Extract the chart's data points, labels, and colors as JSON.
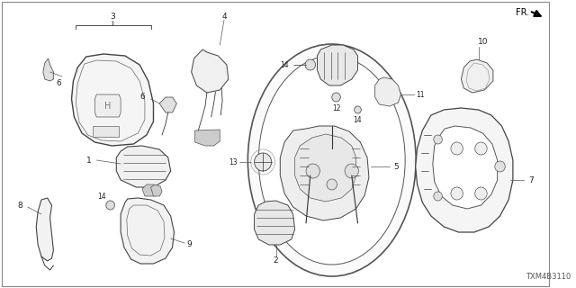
{
  "background": "#ffffff",
  "border_color": "#888888",
  "text_color": "#222222",
  "line_color": "#333333",
  "diagram_code": "TXM4B3110",
  "fs_label": 6.5,
  "fs_small": 5.5,
  "figsize": [
    6.4,
    3.2
  ],
  "dpi": 100
}
